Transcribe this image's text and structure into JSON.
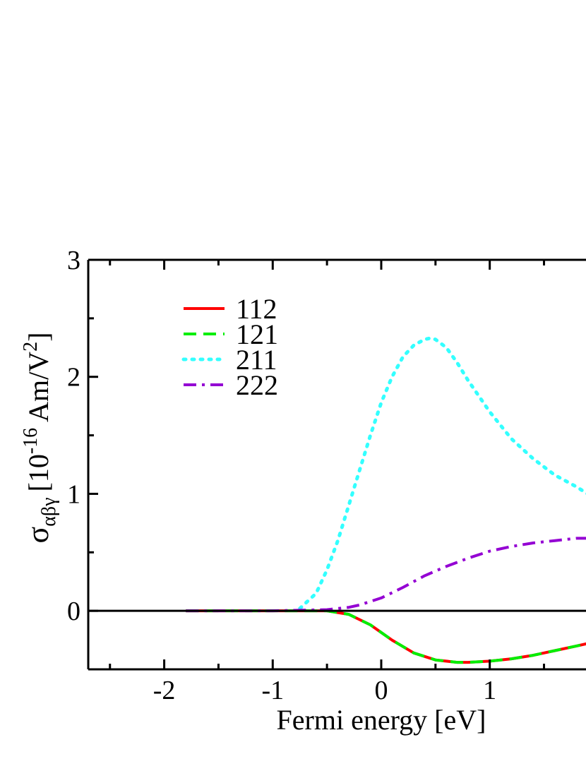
{
  "chart_data": {
    "type": "line",
    "xlabel": "Fermi energy [eV]",
    "ylabel": {
      "symbol": "σ",
      "subscript": "αβγ",
      "bracket_open": "[10",
      "exponent": "-16",
      "unit": "Am/V",
      "unit_exponent": "2",
      "bracket_close": "]"
    },
    "xlim": [
      -2.7,
      1.9
    ],
    "ylim": [
      -0.5,
      3.0
    ],
    "x_ticks": [
      -2,
      -1,
      0,
      1
    ],
    "x_tick_labels": [
      "-2",
      "-1",
      "0",
      "1"
    ],
    "y_ticks": [
      0,
      1,
      2,
      3
    ],
    "y_tick_labels": [
      "0",
      "1",
      "2",
      "3"
    ],
    "grid": false,
    "legend_position": "top-left",
    "zero_line": true,
    "series": [
      {
        "name": "112",
        "color": "#ff0000",
        "style": "solid",
        "x": [
          -1.8,
          -1.0,
          -0.5,
          -0.3,
          -0.1,
          0.1,
          0.3,
          0.5,
          0.7,
          0.8,
          1.0,
          1.2,
          1.4,
          1.6,
          1.8,
          1.9
        ],
        "y": [
          0.0,
          0.0,
          0.0,
          -0.03,
          -0.12,
          -0.25,
          -0.36,
          -0.42,
          -0.44,
          -0.44,
          -0.43,
          -0.41,
          -0.38,
          -0.34,
          -0.3,
          -0.28
        ]
      },
      {
        "name": "121",
        "color": "#00ee00",
        "style": "dashed",
        "x": [
          -1.8,
          -1.0,
          -0.5,
          -0.3,
          -0.1,
          0.1,
          0.3,
          0.5,
          0.7,
          0.8,
          1.0,
          1.2,
          1.4,
          1.6,
          1.8,
          1.9
        ],
        "y": [
          0.0,
          0.0,
          0.0,
          -0.03,
          -0.12,
          -0.25,
          -0.36,
          -0.42,
          -0.44,
          -0.44,
          -0.43,
          -0.41,
          -0.38,
          -0.34,
          -0.3,
          -0.28
        ]
      },
      {
        "name": "211",
        "color": "#33ffff",
        "style": "dotted",
        "x": [
          -0.75,
          -0.6,
          -0.5,
          -0.4,
          -0.3,
          -0.2,
          -0.1,
          0.0,
          0.1,
          0.2,
          0.3,
          0.4,
          0.45,
          0.5,
          0.6,
          0.7,
          0.8,
          1.0,
          1.2,
          1.4,
          1.6,
          1.8,
          1.9
        ],
        "y": [
          0.02,
          0.15,
          0.35,
          0.6,
          0.9,
          1.2,
          1.5,
          1.78,
          2.0,
          2.17,
          2.27,
          2.32,
          2.33,
          2.32,
          2.25,
          2.12,
          1.97,
          1.7,
          1.47,
          1.3,
          1.16,
          1.06,
          1.0
        ]
      },
      {
        "name": "222",
        "color": "#9400d3",
        "style": "dashdot",
        "x": [
          -1.8,
          -1.0,
          -0.5,
          -0.3,
          -0.2,
          -0.1,
          0.0,
          0.2,
          0.4,
          0.6,
          0.8,
          1.0,
          1.2,
          1.4,
          1.6,
          1.8,
          1.9
        ],
        "y": [
          0.0,
          0.0,
          0.01,
          0.03,
          0.05,
          0.08,
          0.11,
          0.2,
          0.3,
          0.38,
          0.45,
          0.51,
          0.55,
          0.58,
          0.6,
          0.62,
          0.62
        ]
      }
    ]
  }
}
